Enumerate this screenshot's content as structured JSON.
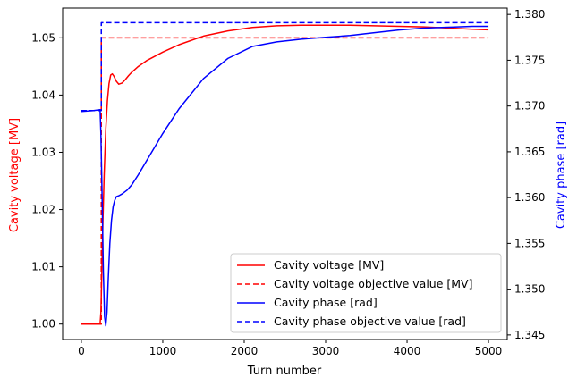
{
  "chart_data": {
    "type": "line",
    "xlabel": "Turn number",
    "ylabel_left": "Cavity voltage [MV]",
    "ylabel_right": "Cavity phase [rad]",
    "left_axis_color": "#ff0000",
    "right_axis_color": "#0000ff",
    "xlim": [
      -230,
      5230
    ],
    "ylim_left": [
      0.9973,
      1.0552
    ],
    "ylim_right": [
      1.3445,
      1.3807
    ],
    "xticks": [
      {
        "value": 0,
        "label": "0"
      },
      {
        "value": 1000,
        "label": "1000"
      },
      {
        "value": 2000,
        "label": "2000"
      },
      {
        "value": 3000,
        "label": "3000"
      },
      {
        "value": 4000,
        "label": "4000"
      },
      {
        "value": 5000,
        "label": "5000"
      }
    ],
    "yticks_left": [
      {
        "value": 1.0,
        "label": "1.00"
      },
      {
        "value": 1.01,
        "label": "1.01"
      },
      {
        "value": 1.02,
        "label": "1.02"
      },
      {
        "value": 1.03,
        "label": "1.03"
      },
      {
        "value": 1.04,
        "label": "1.04"
      },
      {
        "value": 1.05,
        "label": "1.05"
      }
    ],
    "yticks_right": [
      {
        "value": 1.345,
        "label": "1.345"
      },
      {
        "value": 1.35,
        "label": "1.350"
      },
      {
        "value": 1.355,
        "label": "1.355"
      },
      {
        "value": 1.36,
        "label": "1.360"
      },
      {
        "value": 1.365,
        "label": "1.365"
      },
      {
        "value": 1.37,
        "label": "1.370"
      },
      {
        "value": 1.375,
        "label": "1.375"
      },
      {
        "value": 1.38,
        "label": "1.380"
      }
    ],
    "legend_position": "lower-right",
    "series": [
      {
        "name": "Cavity voltage [MV]",
        "axis": "left",
        "color": "#ff0000",
        "dash": "solid",
        "x": [
          0,
          150,
          230,
          240,
          250,
          265,
          280,
          300,
          320,
          340,
          360,
          380,
          400,
          430,
          460,
          500,
          540,
          580,
          620,
          700,
          800,
          1000,
          1200,
          1500,
          1800,
          2100,
          2400,
          2700,
          3000,
          3300,
          3600,
          3900,
          4200,
          4500,
          4800,
          5000
        ],
        "y": [
          1.0,
          1.0,
          1.0,
          1.002,
          1.008,
          1.018,
          1.026,
          1.034,
          1.039,
          1.042,
          1.0435,
          1.0437,
          1.0433,
          1.0424,
          1.0419,
          1.0421,
          1.0427,
          1.0434,
          1.044,
          1.045,
          1.046,
          1.0475,
          1.0488,
          1.0503,
          1.0512,
          1.0518,
          1.0521,
          1.0522,
          1.0522,
          1.0522,
          1.0521,
          1.052,
          1.0519,
          1.0517,
          1.0515,
          1.0514
        ]
      },
      {
        "name": "Cavity voltage objective value [MV]",
        "axis": "left",
        "color": "#ff0000",
        "dash": "dashed",
        "x": [
          0,
          245,
          245,
          5000
        ],
        "y": [
          1.0,
          1.0,
          1.05,
          1.05
        ]
      },
      {
        "name": "Cavity phase [rad]",
        "axis": "right",
        "color": "#0000ff",
        "dash": "solid",
        "x": [
          0,
          150,
          230,
          240,
          255,
          270,
          285,
          300,
          315,
          330,
          350,
          370,
          390,
          410,
          430,
          460,
          500,
          560,
          620,
          700,
          800,
          1000,
          1200,
          1500,
          1800,
          2100,
          2400,
          2700,
          3000,
          3300,
          3600,
          3900,
          4200,
          4500,
          4800,
          5000
        ],
        "y": [
          1.3694,
          1.3695,
          1.3696,
          1.367,
          1.36,
          1.352,
          1.347,
          1.346,
          1.3475,
          1.351,
          1.355,
          1.3575,
          1.359,
          1.3597,
          1.3601,
          1.3602,
          1.3604,
          1.3608,
          1.3614,
          1.3625,
          1.364,
          1.367,
          1.3697,
          1.373,
          1.3752,
          1.3765,
          1.377,
          1.3773,
          1.3775,
          1.3777,
          1.378,
          1.3783,
          1.3785,
          1.3786,
          1.3787,
          1.3787
        ]
      },
      {
        "name": "Cavity phase objective value [rad]",
        "axis": "right",
        "color": "#0000ff",
        "dash": "dashed",
        "x": [
          0,
          245,
          245,
          5000
        ],
        "y": [
          1.3695,
          1.3695,
          1.3791,
          1.3791
        ]
      }
    ]
  }
}
